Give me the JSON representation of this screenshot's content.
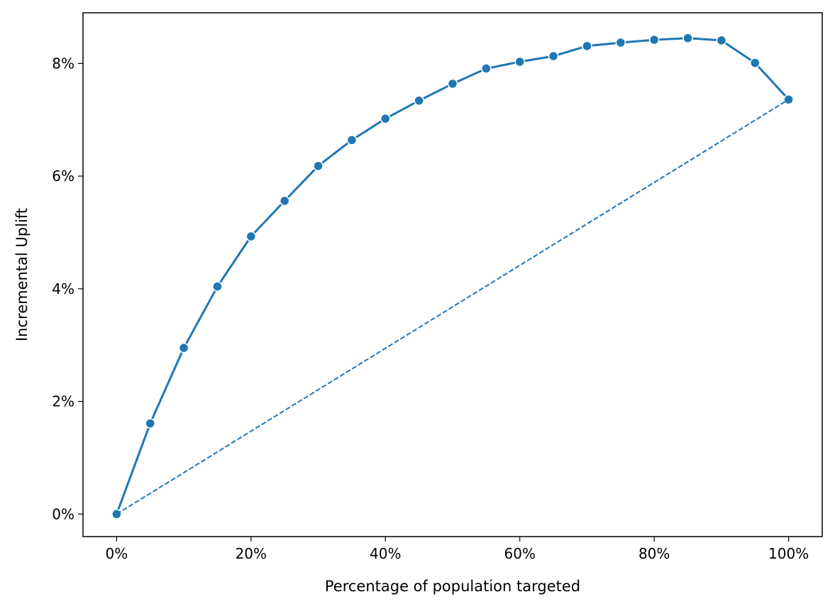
{
  "chart_data": {
    "type": "line",
    "xlabel": "Percentage of population targeted",
    "ylabel": "Incremental Uplift",
    "xlim": [
      -5,
      105
    ],
    "ylim": [
      -0.4,
      8.9
    ],
    "x_ticks": [
      0,
      20,
      40,
      60,
      80,
      100
    ],
    "x_tick_labels": [
      "0%",
      "20%",
      "40%",
      "60%",
      "80%",
      "100%"
    ],
    "y_ticks": [
      0,
      2,
      4,
      6,
      8
    ],
    "y_tick_labels": [
      "0%",
      "2%",
      "4%",
      "6%",
      "8%"
    ],
    "grid": false,
    "series": [
      {
        "style": "solid-with-markers",
        "color": "#1f77b4",
        "x": [
          0,
          5,
          10,
          15,
          20,
          25,
          30,
          35,
          40,
          45,
          50,
          55,
          60,
          65,
          70,
          75,
          80,
          85,
          90,
          95,
          100
        ],
        "y": [
          0.0,
          1.61,
          2.95,
          4.04,
          4.93,
          5.56,
          6.18,
          6.64,
          7.02,
          7.34,
          7.64,
          7.91,
          8.03,
          8.13,
          8.31,
          8.37,
          8.42,
          8.45,
          8.41,
          8.01,
          7.36
        ]
      },
      {
        "style": "dashed",
        "color": "#1f77b4",
        "x": [
          0,
          100
        ],
        "y": [
          0.0,
          7.36
        ]
      }
    ]
  }
}
